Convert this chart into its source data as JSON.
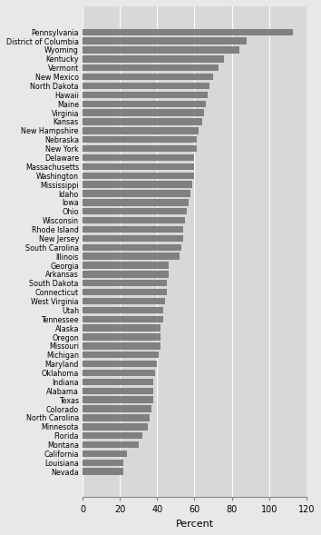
{
  "states": [
    "Pennsylvania",
    "District of Columbia",
    "Wyoming",
    "Kentucky",
    "Vermont",
    "New Mexico",
    "North Dakota",
    "Hawaii",
    "Maine",
    "Virginia",
    "Kansas",
    "New Hampshire",
    "Nebraska",
    "New York",
    "Delaware",
    "Massachusetts",
    "Washington",
    "Mississippi",
    "Idaho",
    "Iowa",
    "Ohio",
    "Wisconsin",
    "Rhode Island",
    "New Jersey",
    "South Carolina",
    "Illinois",
    "Georgia",
    "Arkansas",
    "South Dakota",
    "Connecticut",
    "West Virginia",
    "Utah",
    "Tennessee",
    "Alaska",
    "Oregon",
    "Missouri",
    "Michigan",
    "Maryland",
    "Oklahoma",
    "Indiana",
    "Alabama",
    "Texas",
    "Colorado",
    "North Carolina",
    "Minnesota",
    "Florida",
    "Montana",
    "California",
    "Louisiana",
    "Nevada"
  ],
  "values": [
    113,
    88,
    84,
    76,
    73,
    70,
    68,
    67,
    66,
    65,
    64,
    62,
    61,
    61,
    60,
    60,
    60,
    59,
    58,
    57,
    56,
    55,
    54,
    54,
    53,
    52,
    46,
    46,
    45,
    45,
    44,
    43,
    43,
    42,
    42,
    42,
    41,
    40,
    39,
    38,
    38,
    38,
    37,
    36,
    35,
    32,
    30,
    24,
    22,
    22
  ],
  "bar_color": "#808080",
  "bg_color": "#e8e8e8",
  "plot_bg_color": "#d8d8d8",
  "xlabel": "Percent",
  "xlim": [
    0,
    120
  ],
  "xticks": [
    0,
    20,
    40,
    60,
    80,
    100,
    120
  ],
  "grid_color": "#ffffff"
}
